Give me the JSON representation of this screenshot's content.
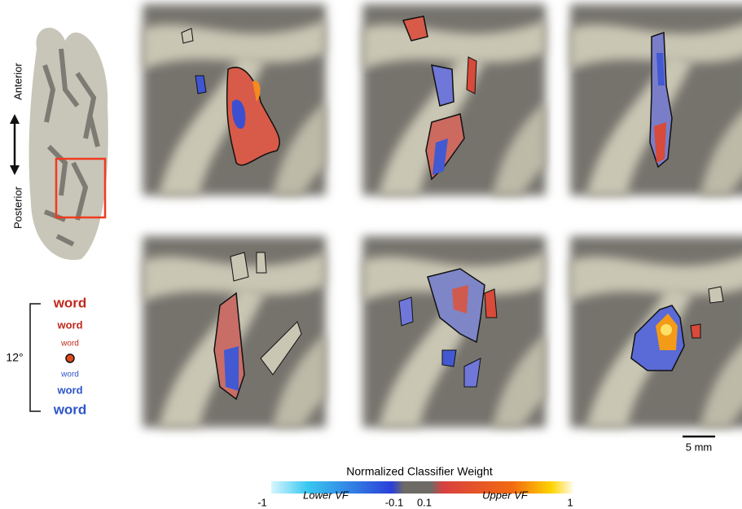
{
  "orientation": {
    "anterior": "Anterior",
    "posterior": "Posterior"
  },
  "stimulus": {
    "angle": "12°",
    "words": [
      "word",
      "word",
      "word",
      "word",
      "word",
      "word"
    ]
  },
  "scale_bar": "5 mm",
  "colorbar": {
    "title": "Normalized Classifier Weight",
    "ticks": [
      -1,
      -0.1,
      0.1,
      1
    ],
    "lower_label": "Lower VF",
    "upper_label": "Upper VF"
  }
}
